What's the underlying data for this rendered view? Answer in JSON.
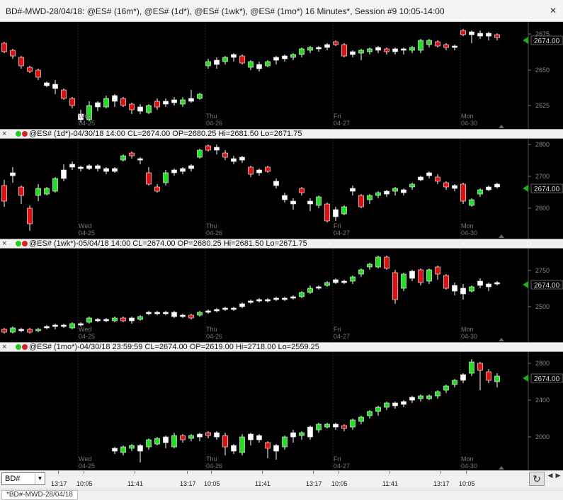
{
  "window": {
    "title": "BD#-MWD-28/04/18: @ES# (16m*), @ES# (1d*), @ES# (1wk*), @ES# (1mo*) 16 Minutes*, Session #9 10:05-14:00",
    "close_glyph": "✕"
  },
  "colors": {
    "up": "#22dd22",
    "down": "#dd1111",
    "doji": "#ffffff",
    "background": "#000000",
    "grid": "#2a2a2a",
    "price_marker": "#22aa22"
  },
  "panes": [
    {
      "header": "",
      "price_label": "2674.00",
      "axis_ticks": [
        "2675",
        "2650",
        "2625"
      ],
      "day_labels": [
        {
          "day": "Wed",
          "date": "04-25"
        },
        {
          "day": "Thu",
          "date": "04-26"
        },
        {
          "day": "Fri",
          "date": "04-27"
        },
        {
          "day": "Mon",
          "date": "04-30"
        }
      ]
    },
    {
      "header": "@ES# (1d*)-04/30/18 14:00 CL=2674.00 OP=2680.25 Hi=2681.50 Lo=2671.75",
      "price_label": "2674.00",
      "axis_ticks": [
        "2800",
        "2700",
        "2600"
      ],
      "day_labels": [
        {
          "day": "Wed",
          "date": "04-25"
        },
        {
          "day": "Thu",
          "date": "04-26"
        },
        {
          "day": "Fri",
          "date": "04-27"
        },
        {
          "day": "Mon",
          "date": "04-30"
        }
      ]
    },
    {
      "header": "@ES# (1wk*)-05/04/18 14:00 CL=2674.00 OP=2680.25 Hi=2681.50 Lo=2671.75",
      "price_label": "2674.00",
      "axis_ticks": [
        "2750",
        "2500"
      ],
      "day_labels": [
        {
          "day": "Wed",
          "date": "04-25"
        },
        {
          "day": "Thu",
          "date": "04-26"
        },
        {
          "day": "Fri",
          "date": "04-27"
        },
        {
          "day": "Mon",
          "date": "04-30"
        }
      ]
    },
    {
      "header": "@ES# (1mo*)-04/30/18 23:59:59 CL=2674.00 OP=2619.00 Hi=2718.00 Lo=2559.25",
      "price_label": "2674.00",
      "axis_ticks": [
        "2800",
        "2400",
        "2000"
      ],
      "day_labels": [
        {
          "day": "Wed",
          "date": "04-25"
        },
        {
          "day": "Thu",
          "date": "04-26"
        },
        {
          "day": "Fri",
          "date": "04-27"
        },
        {
          "day": "Mon",
          "date": "04-30"
        }
      ]
    }
  ],
  "time_axis": {
    "symbol_select": "BD#",
    "labels": [
      "13:17",
      "10:05",
      "11:41",
      "13:17",
      "10:05",
      "11:41",
      "13:17",
      "10:05",
      "11:41",
      "13:17",
      "10:05"
    ]
  },
  "status_tab": "*BD#-MWD-28/04/18",
  "scroll_glyphs": {
    "left": "◀",
    "right": "▶"
  },
  "refresh_glyph": "↻"
}
